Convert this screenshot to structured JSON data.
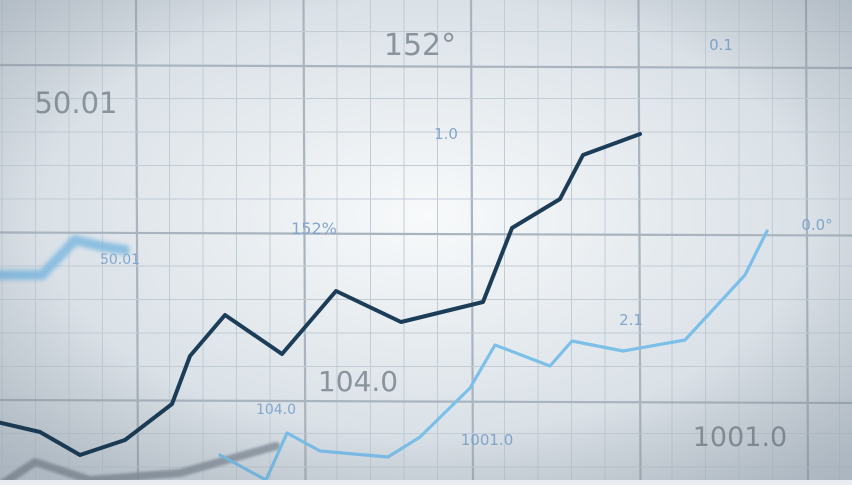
{
  "chart_data": {
    "type": "line",
    "title": "",
    "xlabel": "",
    "ylabel": "",
    "grid": true,
    "legend": "none",
    "colors": {
      "background_center": "#f8fafb",
      "background_edge": "#c9d3dc",
      "grid_minor": "#c2ccd5",
      "grid_major": "#a9b4be",
      "dark_series": "#1c3d58",
      "light_series": "#7cc0ea",
      "gray_series": "#8f9aa4",
      "blurred_blue": "#7fb9e0",
      "large_label": "#8a949d",
      "small_label": "#7fa3cc"
    },
    "series": [
      {
        "style": "dark-series",
        "points": [
          [
            -20,
            418
          ],
          [
            40,
            432
          ],
          [
            80,
            455
          ],
          [
            125,
            440
          ],
          [
            172,
            404
          ],
          [
            190,
            356
          ],
          [
            225,
            315
          ],
          [
            282,
            354
          ],
          [
            336,
            291
          ],
          [
            401,
            322
          ],
          [
            483,
            302
          ],
          [
            512,
            228
          ],
          [
            560,
            199
          ],
          [
            583,
            155
          ],
          [
            640,
            134
          ]
        ]
      },
      {
        "style": "light-series",
        "points": [
          [
            220,
            455
          ],
          [
            266,
            480
          ],
          [
            287,
            433
          ],
          [
            320,
            451
          ],
          [
            388,
            457
          ],
          [
            420,
            437
          ],
          [
            470,
            388
          ],
          [
            495,
            345
          ],
          [
            550,
            366
          ],
          [
            572,
            341
          ],
          [
            623,
            351
          ],
          [
            685,
            340
          ],
          [
            745,
            275
          ],
          [
            767,
            231
          ]
        ]
      },
      {
        "style": "gray-series",
        "points": [
          [
            -10,
            492
          ],
          [
            35,
            462
          ],
          [
            90,
            480
          ],
          [
            180,
            473
          ],
          [
            230,
            459
          ],
          [
            276,
            446
          ]
        ]
      },
      {
        "style": "blurred-series",
        "points": [
          [
            -10,
            275
          ],
          [
            42,
            275
          ],
          [
            75,
            240
          ],
          [
            100,
            246
          ],
          [
            125,
            250
          ]
        ]
      }
    ],
    "annotations": [
      {
        "text": "152°",
        "x": 420,
        "y": 55,
        "size": 30,
        "kind": "large"
      },
      {
        "text": "50.01",
        "x": 76,
        "y": 113,
        "size": 29,
        "kind": "large"
      },
      {
        "text": "104.0",
        "x": 358,
        "y": 391,
        "size": 28,
        "kind": "large"
      },
      {
        "text": "1001.0",
        "x": 740,
        "y": 446,
        "size": 27,
        "kind": "large"
      },
      {
        "text": "0.1",
        "x": 721,
        "y": 50,
        "size": 15,
        "kind": "small"
      },
      {
        "text": "1.0",
        "x": 446,
        "y": 139,
        "size": 15,
        "kind": "small"
      },
      {
        "text": "152%",
        "x": 314,
        "y": 234,
        "size": 16,
        "kind": "small"
      },
      {
        "text": "0.0°",
        "x": 817,
        "y": 230,
        "size": 15,
        "kind": "small"
      },
      {
        "text": "50.01",
        "x": 120,
        "y": 264,
        "size": 14,
        "kind": "small"
      },
      {
        "text": "2.1",
        "x": 631,
        "y": 325,
        "size": 15,
        "kind": "small"
      },
      {
        "text": "104.0",
        "x": 276,
        "y": 414,
        "size": 14,
        "kind": "small"
      },
      {
        "text": "1001.0",
        "x": 487,
        "y": 445,
        "size": 15,
        "kind": "small"
      }
    ]
  }
}
